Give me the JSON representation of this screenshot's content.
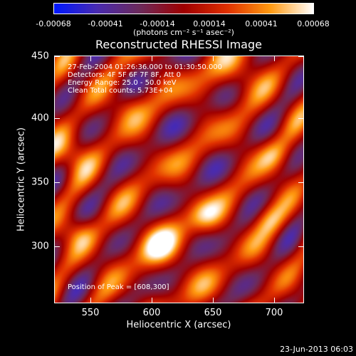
{
  "colorbar": {
    "ticks": [
      "-0.00068",
      "-0.00041",
      "-0.00014",
      "0.00014",
      "0.00041",
      "0.00068"
    ],
    "units": "(photons cm⁻² s⁻¹ asec⁻²)",
    "colors": [
      "#0018ff",
      "#4a2bb0",
      "#6e2a5a",
      "#a00000",
      "#e03000",
      "#ff9a10",
      "#ffffff"
    ]
  },
  "title": "Reconstructed RHESSI Image",
  "axes": {
    "xlabel": "Heliocentric X (arcsec)",
    "ylabel": "Heliocentric Y (arcsec)",
    "xticks": [
      "550",
      "600",
      "650",
      "700"
    ],
    "yticks": [
      "450",
      "400",
      "350",
      "300"
    ]
  },
  "info": {
    "line1": "27-Feb-2004 01:26:36.000 to 01:30:50.000",
    "line2": "Detectors: 4F 5F 6F 7F 8F, Att 0",
    "line3": "Energy Range: 25.0 - 50.0 keV",
    "line4": "Clean     Total counts: 5.73E+04"
  },
  "peak": "Position of Peak = [608,300]",
  "footer_date": "23-Jun-2013 06:03"
}
